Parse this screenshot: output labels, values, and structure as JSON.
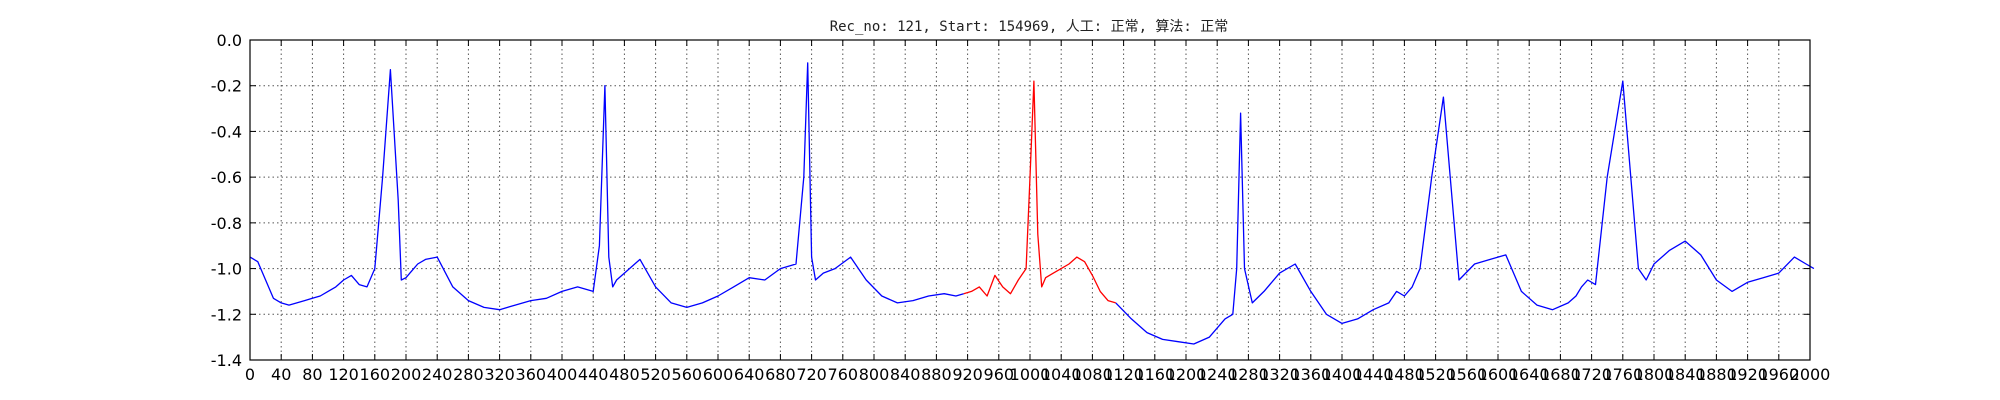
{
  "chart_data": {
    "type": "line",
    "title": "Rec_no: 121, Start: 154969, 人工: 正常, 算法: 正常",
    "xlabel": "",
    "ylabel": "",
    "xlim": [
      0,
      2000
    ],
    "ylim": [
      -1.4,
      0.0
    ],
    "grid": true,
    "yticks": [
      0.0,
      -0.2,
      -0.4,
      -0.6,
      -0.8,
      -1.0,
      -1.2,
      -1.4
    ],
    "ytick_labels": [
      "0.0",
      "-0.2",
      "-0.4",
      "-0.6",
      "-0.8",
      "-1.0",
      "-1.2",
      "-1.4"
    ],
    "xticks": [
      0,
      40,
      80,
      120,
      160,
      200,
      240,
      280,
      320,
      360,
      400,
      440,
      480,
      520,
      560,
      600,
      640,
      680,
      720,
      760,
      800,
      840,
      880,
      920,
      960,
      1000,
      1040,
      1080,
      1120,
      1160,
      1200,
      1240,
      1280,
      1320,
      1360,
      1400,
      1440,
      1480,
      1520,
      1560,
      1600,
      1640,
      1680,
      1720,
      1760,
      1800,
      1840,
      1880,
      1920,
      1960,
      2000
    ],
    "xtick_labels": [
      "0",
      "40",
      "80",
      "120",
      "160",
      "200",
      "240",
      "280",
      "320",
      "360",
      "400",
      "440",
      "480",
      "520",
      "560",
      "600",
      "640",
      "680",
      "720",
      "760",
      "800",
      "840",
      "880",
      "920",
      "960",
      "1000",
      "1040",
      "1080",
      "1120",
      "1160",
      "1200",
      "1240",
      "1280",
      "1320",
      "1360",
      "1400",
      "1440",
      "1480",
      "1520",
      "1560",
      "1600",
      "1640",
      "1680",
      "1720",
      "1760",
      "1800",
      "1840",
      "1880",
      "1920",
      "1960",
      "2000"
    ],
    "series": [
      {
        "color": "#0000ff",
        "x": [
          0,
          10,
          20,
          30,
          40,
          50,
          60,
          70,
          80,
          90,
          100,
          110,
          120,
          130,
          140,
          150,
          160,
          170,
          180,
          190,
          194,
          200,
          205,
          210,
          215,
          225,
          240,
          260,
          280,
          300,
          320,
          340,
          360,
          380,
          400,
          420,
          440,
          448,
          455,
          460,
          465,
          470,
          480,
          500,
          520,
          540,
          560,
          580,
          600,
          620,
          640,
          660,
          680,
          700,
          710,
          715,
          720,
          725,
          735,
          750,
          770,
          790,
          810,
          830,
          850,
          870,
          890,
          905,
          915
        ],
        "y": [
          -0.95,
          -0.97,
          -1.05,
          -1.13,
          -1.15,
          -1.16,
          -1.15,
          -1.14,
          -1.13,
          -1.12,
          -1.1,
          -1.08,
          -1.05,
          -1.03,
          -1.07,
          -1.08,
          -1.0,
          -0.6,
          -0.13,
          -0.7,
          -1.05,
          -1.04,
          -1.02,
          -1.0,
          -0.98,
          -0.96,
          -0.95,
          -1.08,
          -1.14,
          -1.17,
          -1.18,
          -1.16,
          -1.14,
          -1.13,
          -1.1,
          -1.08,
          -1.1,
          -0.9,
          -0.2,
          -0.95,
          -1.08,
          -1.05,
          -1.02,
          -0.96,
          -1.08,
          -1.15,
          -1.17,
          -1.15,
          -1.12,
          -1.08,
          -1.04,
          -1.05,
          -1.0,
          -0.98,
          -0.6,
          -0.1,
          -0.95,
          -1.05,
          -1.02,
          -1.0,
          -0.95,
          -1.05,
          -1.12,
          -1.15,
          -1.14,
          -1.12,
          -1.11,
          -1.12,
          -1.11
        ]
      },
      {
        "color": "#ff0000",
        "x": [
          915,
          925,
          935,
          945,
          955,
          965,
          975,
          985,
          995,
          1000,
          1005,
          1010,
          1015,
          1020,
          1030,
          1040,
          1050,
          1060,
          1070,
          1080,
          1090,
          1100,
          1110
        ],
        "y": [
          -1.11,
          -1.1,
          -1.08,
          -1.12,
          -1.03,
          -1.08,
          -1.11,
          -1.05,
          -1.0,
          -0.6,
          -0.18,
          -0.85,
          -1.08,
          -1.04,
          -1.02,
          -1.0,
          -0.98,
          -0.95,
          -0.97,
          -1.03,
          -1.1,
          -1.14,
          -1.15
        ]
      },
      {
        "color": "#0000ff",
        "x": [
          1110,
          1130,
          1150,
          1170,
          1190,
          1210,
          1230,
          1250,
          1260,
          1265,
          1270,
          1275,
          1285,
          1300,
          1320,
          1340,
          1360,
          1380,
          1400,
          1420,
          1440,
          1460,
          1470,
          1480,
          1490,
          1500,
          1515,
          1530,
          1550,
          1570,
          1590,
          1610,
          1630,
          1650,
          1670,
          1690,
          1700,
          1707,
          1715,
          1725,
          1740,
          1760,
          1780,
          1790,
          1800,
          1820,
          1840,
          1860,
          1880,
          1900,
          1920,
          1940,
          1960,
          1980,
          1995,
          2005
        ],
        "y": [
          -1.15,
          -1.22,
          -1.28,
          -1.31,
          -1.32,
          -1.33,
          -1.3,
          -1.22,
          -1.2,
          -1.0,
          -0.32,
          -1.0,
          -1.15,
          -1.1,
          -1.02,
          -0.98,
          -1.1,
          -1.2,
          -1.24,
          -1.22,
          -1.18,
          -1.15,
          -1.1,
          -1.12,
          -1.08,
          -1.0,
          -0.6,
          -0.25,
          -1.05,
          -0.98,
          -0.96,
          -0.94,
          -1.1,
          -1.16,
          -1.18,
          -1.15,
          -1.12,
          -1.08,
          -1.05,
          -1.07,
          -0.6,
          -0.18,
          -1.0,
          -1.05,
          -0.98,
          -0.92,
          -0.88,
          -0.94,
          -1.05,
          -1.1,
          -1.06,
          -1.04,
          -1.02,
          -0.95,
          -0.98,
          -1.0
        ]
      }
    ]
  }
}
